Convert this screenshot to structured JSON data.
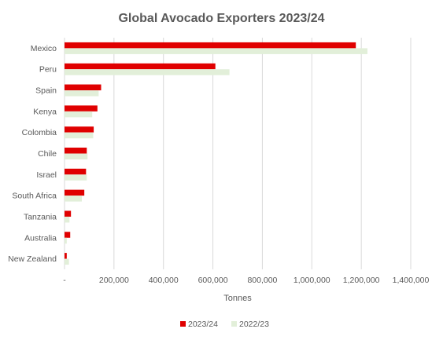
{
  "chart_data": {
    "type": "bar",
    "orientation": "horizontal",
    "title": "Global Avocado Exporters 2023/24",
    "xlabel": "Tonnes",
    "ylabel": "",
    "categories": [
      "Mexico",
      "Peru",
      "Spain",
      "Kenya",
      "Colombia",
      "Chile",
      "Israel",
      "South Africa",
      "Tanzania",
      "Australia",
      "New Zealand"
    ],
    "series": [
      {
        "name": "2023/24",
        "color": "#e00000",
        "values": [
          1178000,
          610000,
          148000,
          133000,
          118000,
          90000,
          87000,
          80000,
          26000,
          23000,
          9000
        ]
      },
      {
        "name": "2022/23",
        "color": "#e2efd9",
        "values": [
          1225000,
          667000,
          138000,
          112000,
          116000,
          93000,
          90000,
          70000,
          20000,
          9000,
          18000
        ]
      }
    ],
    "xlim": [
      0,
      1400000
    ],
    "x_ticks": [
      "-",
      "200,000",
      "400,000",
      "600,000",
      "800,000",
      "1,000,000",
      "1,200,000",
      "1,400,000"
    ],
    "tick_values": [
      0,
      200000,
      400000,
      600000,
      800000,
      1000000,
      1200000,
      1400000
    ],
    "grid": "vertical",
    "legend_position": "bottom"
  }
}
